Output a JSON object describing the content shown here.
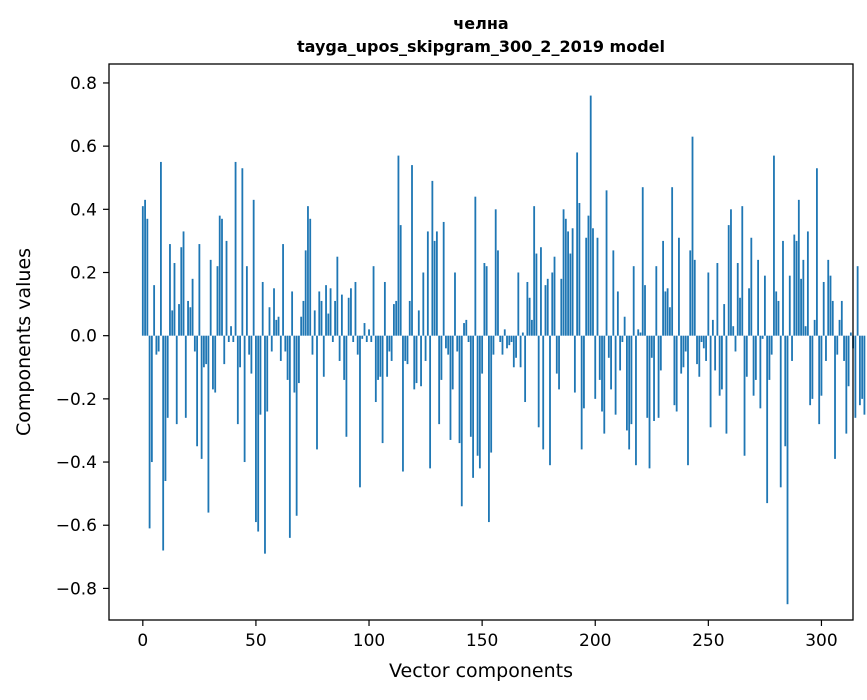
{
  "chart_data": {
    "type": "bar",
    "title": "челна",
    "subtitle": "tayga_upos_skipgram_300_2_2019 model",
    "xlabel": "Vector components",
    "ylabel": "Components values",
    "xlim": [
      -14.95,
      313.95
    ],
    "ylim": [
      -0.9,
      0.86
    ],
    "xticks": [
      0,
      50,
      100,
      150,
      200,
      250,
      300
    ],
    "yticks": [
      -0.8,
      -0.6,
      -0.4,
      -0.2,
      0.0,
      0.2,
      0.4,
      0.6,
      0.8
    ],
    "xtick_labels": [
      "0",
      "50",
      "100",
      "150",
      "200",
      "250",
      "300"
    ],
    "ytick_labels": [
      "−0.8",
      "−0.6",
      "−0.4",
      "−0.2",
      "0.0",
      "0.2",
      "0.4",
      "0.6",
      "0.8"
    ],
    "grid": false,
    "legend": "none",
    "bar_color": "#1f77b4",
    "x_start": 0,
    "values": [
      0.41,
      0.43,
      0.37,
      -0.61,
      -0.4,
      0.16,
      -0.06,
      -0.05,
      0.55,
      -0.68,
      -0.46,
      -0.26,
      0.29,
      0.08,
      0.23,
      -0.28,
      0.1,
      0.28,
      0.33,
      -0.26,
      0.11,
      0.09,
      0.18,
      -0.05,
      -0.35,
      0.29,
      -0.39,
      -0.1,
      -0.09,
      -0.56,
      0.24,
      -0.17,
      -0.18,
      0.22,
      0.38,
      0.37,
      -0.09,
      0.3,
      -0.02,
      0.03,
      -0.02,
      0.55,
      -0.28,
      -0.1,
      0.53,
      -0.4,
      0.22,
      -0.06,
      -0.12,
      0.43,
      -0.59,
      -0.62,
      -0.25,
      0.17,
      -0.69,
      -0.24,
      0.09,
      -0.05,
      0.15,
      0.05,
      0.06,
      -0.08,
      0.29,
      -0.05,
      -0.14,
      -0.64,
      0.14,
      -0.18,
      -0.57,
      -0.15,
      0.06,
      0.11,
      0.27,
      0.41,
      0.37,
      -0.06,
      0.08,
      -0.36,
      0.14,
      0.11,
      -0.13,
      0.16,
      0.07,
      0.15,
      -0.02,
      0.11,
      0.25,
      -0.08,
      0.13,
      -0.14,
      -0.32,
      0.12,
      0.15,
      -0.02,
      0.17,
      -0.06,
      -0.48,
      -0.01,
      0.04,
      -0.02,
      0.02,
      -0.02,
      0.22,
      -0.21,
      -0.14,
      -0.13,
      -0.34,
      0.17,
      -0.13,
      -0.05,
      -0.08,
      0.1,
      0.11,
      0.57,
      0.35,
      -0.43,
      -0.08,
      -0.09,
      0.11,
      0.54,
      -0.17,
      -0.15,
      0.08,
      -0.16,
      0.2,
      -0.08,
      0.33,
      -0.42,
      0.49,
      0.3,
      0.33,
      -0.28,
      -0.14,
      0.36,
      -0.04,
      -0.06,
      -0.33,
      -0.17,
      0.2,
      -0.05,
      -0.34,
      -0.54,
      0.04,
      0.05,
      -0.02,
      -0.32,
      -0.45,
      0.44,
      -0.38,
      -0.42,
      -0.12,
      0.23,
      0.22,
      -0.59,
      -0.37,
      -0.06,
      0.4,
      0.27,
      -0.02,
      -0.06,
      0.02,
      -0.04,
      -0.03,
      -0.02,
      -0.1,
      -0.07,
      0.2,
      -0.1,
      0.01,
      -0.21,
      0.17,
      0.12,
      0.05,
      0.41,
      0.26,
      -0.29,
      0.28,
      -0.36,
      0.16,
      0.18,
      -0.41,
      0.2,
      0.25,
      -0.12,
      -0.17,
      0.18,
      0.4,
      0.37,
      0.33,
      0.26,
      0.34,
      -0.18,
      0.58,
      0.42,
      -0.36,
      -0.23,
      0.31,
      0.38,
      0.76,
      0.34,
      -0.2,
      0.31,
      -0.14,
      -0.24,
      -0.31,
      0.46,
      -0.07,
      -0.17,
      0.27,
      -0.25,
      0.14,
      -0.11,
      -0.02,
      0.06,
      -0.3,
      -0.36,
      -0.28,
      0.22,
      -0.41,
      0.02,
      0.01,
      0.47,
      0.16,
      -0.26,
      -0.42,
      -0.07,
      -0.27,
      0.22,
      -0.26,
      -0.11,
      0.3,
      0.14,
      0.15,
      0.09,
      0.47,
      -0.22,
      -0.24,
      0.31,
      -0.12,
      -0.1,
      -0.05,
      -0.41,
      0.27,
      0.63,
      0.24,
      -0.09,
      -0.13,
      -0.02,
      -0.04,
      -0.08,
      0.2,
      -0.29,
      0.05,
      -0.11,
      0.23,
      -0.19,
      -0.17,
      0.1,
      -0.31,
      0.35,
      0.4,
      0.03,
      -0.05,
      0.23,
      0.12,
      0.41,
      -0.38,
      -0.13,
      0.15,
      0.31,
      -0.19,
      -0.14,
      0.24,
      -0.23,
      -0.01,
      0.19,
      -0.53,
      -0.14,
      -0.06,
      0.57,
      0.14,
      0.11,
      -0.48,
      0.3,
      -0.35,
      -0.85,
      0.19,
      -0.08,
      0.32,
      0.3,
      0.43,
      0.18,
      0.24,
      0.03,
      0.33,
      -0.22,
      -0.2,
      0.05,
      0.53,
      -0.28,
      -0.19,
      0.17,
      -0.08,
      0.24,
      0.19,
      0.11,
      -0.39,
      -0.06,
      0.05,
      0.11,
      -0.08,
      -0.31,
      -0.16,
      0.01,
      -0.04,
      -0.26,
      0.22,
      -0.22,
      -0.2,
      -0.25
    ]
  }
}
